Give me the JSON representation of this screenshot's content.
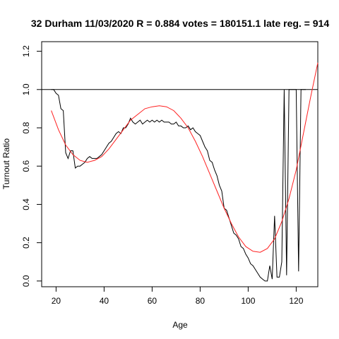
{
  "chart_data": {
    "type": "line",
    "title": "32 Durham 11/03/2020 R = 0.884 votes = 180151.1 late reg. = 914",
    "xlabel": "Age",
    "ylabel": "Turnout Ratio",
    "xlim": [
      14,
      129
    ],
    "ylim": [
      -0.03,
      1.25
    ],
    "xticks": [
      20,
      40,
      60,
      80,
      100,
      120
    ],
    "yticks": [
      0.0,
      0.2,
      0.4,
      0.6,
      0.8,
      1.0,
      1.2
    ],
    "xtick_labels": [
      "20",
      "40",
      "60",
      "80",
      "100",
      "120"
    ],
    "ytick_labels": [
      "0.0",
      "0.2",
      "0.4",
      "0.6",
      "0.8",
      "1.0",
      "1.2"
    ],
    "grid": false,
    "legend": "none",
    "reference_line": {
      "y": 1.0,
      "color": "#000000"
    },
    "series": [
      {
        "color": "#000000",
        "x": [
          18,
          19,
          20,
          21,
          22,
          23,
          24,
          25,
          26,
          27,
          28,
          29,
          30,
          31,
          32,
          33,
          34,
          35,
          36,
          37,
          38,
          39,
          40,
          41,
          42,
          43,
          44,
          45,
          46,
          47,
          48,
          49,
          50,
          51,
          52,
          53,
          54,
          55,
          56,
          57,
          58,
          59,
          60,
          61,
          62,
          63,
          64,
          65,
          66,
          67,
          68,
          69,
          70,
          71,
          72,
          73,
          74,
          75,
          76,
          77,
          78,
          79,
          80,
          81,
          82,
          83,
          84,
          85,
          86,
          87,
          88,
          89,
          90,
          91,
          92,
          93,
          94,
          95,
          96,
          97,
          98,
          99,
          100,
          101,
          102,
          103,
          104,
          105,
          106,
          107,
          108,
          109,
          110,
          111,
          112,
          113,
          114,
          115,
          116,
          117,
          118,
          119,
          120,
          121,
          122,
          123,
          124
        ],
        "y": [
          1.0,
          1.0,
          0.98,
          0.97,
          0.9,
          0.89,
          0.67,
          0.64,
          0.68,
          0.68,
          0.59,
          0.6,
          0.6,
          0.61,
          0.62,
          0.64,
          0.65,
          0.64,
          0.64,
          0.64,
          0.65,
          0.66,
          0.68,
          0.7,
          0.72,
          0.73,
          0.75,
          0.77,
          0.78,
          0.77,
          0.8,
          0.8,
          0.82,
          0.85,
          0.83,
          0.82,
          0.83,
          0.84,
          0.82,
          0.83,
          0.84,
          0.83,
          0.84,
          0.83,
          0.84,
          0.83,
          0.84,
          0.83,
          0.83,
          0.83,
          0.82,
          0.82,
          0.83,
          0.81,
          0.81,
          0.8,
          0.8,
          0.81,
          0.79,
          0.8,
          0.78,
          0.77,
          0.76,
          0.73,
          0.7,
          0.68,
          0.63,
          0.62,
          0.58,
          0.55,
          0.5,
          0.47,
          0.38,
          0.37,
          0.33,
          0.29,
          0.25,
          0.24,
          0.22,
          0.18,
          0.17,
          0.14,
          0.12,
          0.09,
          0.08,
          0.06,
          0.04,
          0.02,
          0.01,
          0.0,
          0.0,
          0.08,
          0.01,
          0.34,
          0.02,
          0.02,
          0.1,
          1.0,
          0.03,
          1.0,
          1.0,
          1.0,
          1.0,
          0.05,
          1.0,
          1.0,
          1.0
        ]
      },
      {
        "color": "#ff2020",
        "x": [
          18,
          21,
          24,
          27,
          30,
          33,
          36,
          39,
          42,
          45,
          48,
          51,
          54,
          57,
          60,
          63,
          66,
          69,
          72,
          75,
          78,
          81,
          84,
          87,
          90,
          93,
          96,
          99,
          102,
          105,
          108,
          111,
          114,
          117,
          120,
          123,
          126,
          129
        ],
        "y": [
          0.89,
          0.79,
          0.71,
          0.66,
          0.63,
          0.62,
          0.63,
          0.65,
          0.69,
          0.74,
          0.79,
          0.84,
          0.87,
          0.9,
          0.91,
          0.915,
          0.91,
          0.89,
          0.85,
          0.8,
          0.73,
          0.65,
          0.56,
          0.47,
          0.38,
          0.3,
          0.23,
          0.18,
          0.155,
          0.15,
          0.17,
          0.22,
          0.31,
          0.43,
          0.58,
          0.77,
          0.96,
          1.14
        ]
      }
    ]
  }
}
